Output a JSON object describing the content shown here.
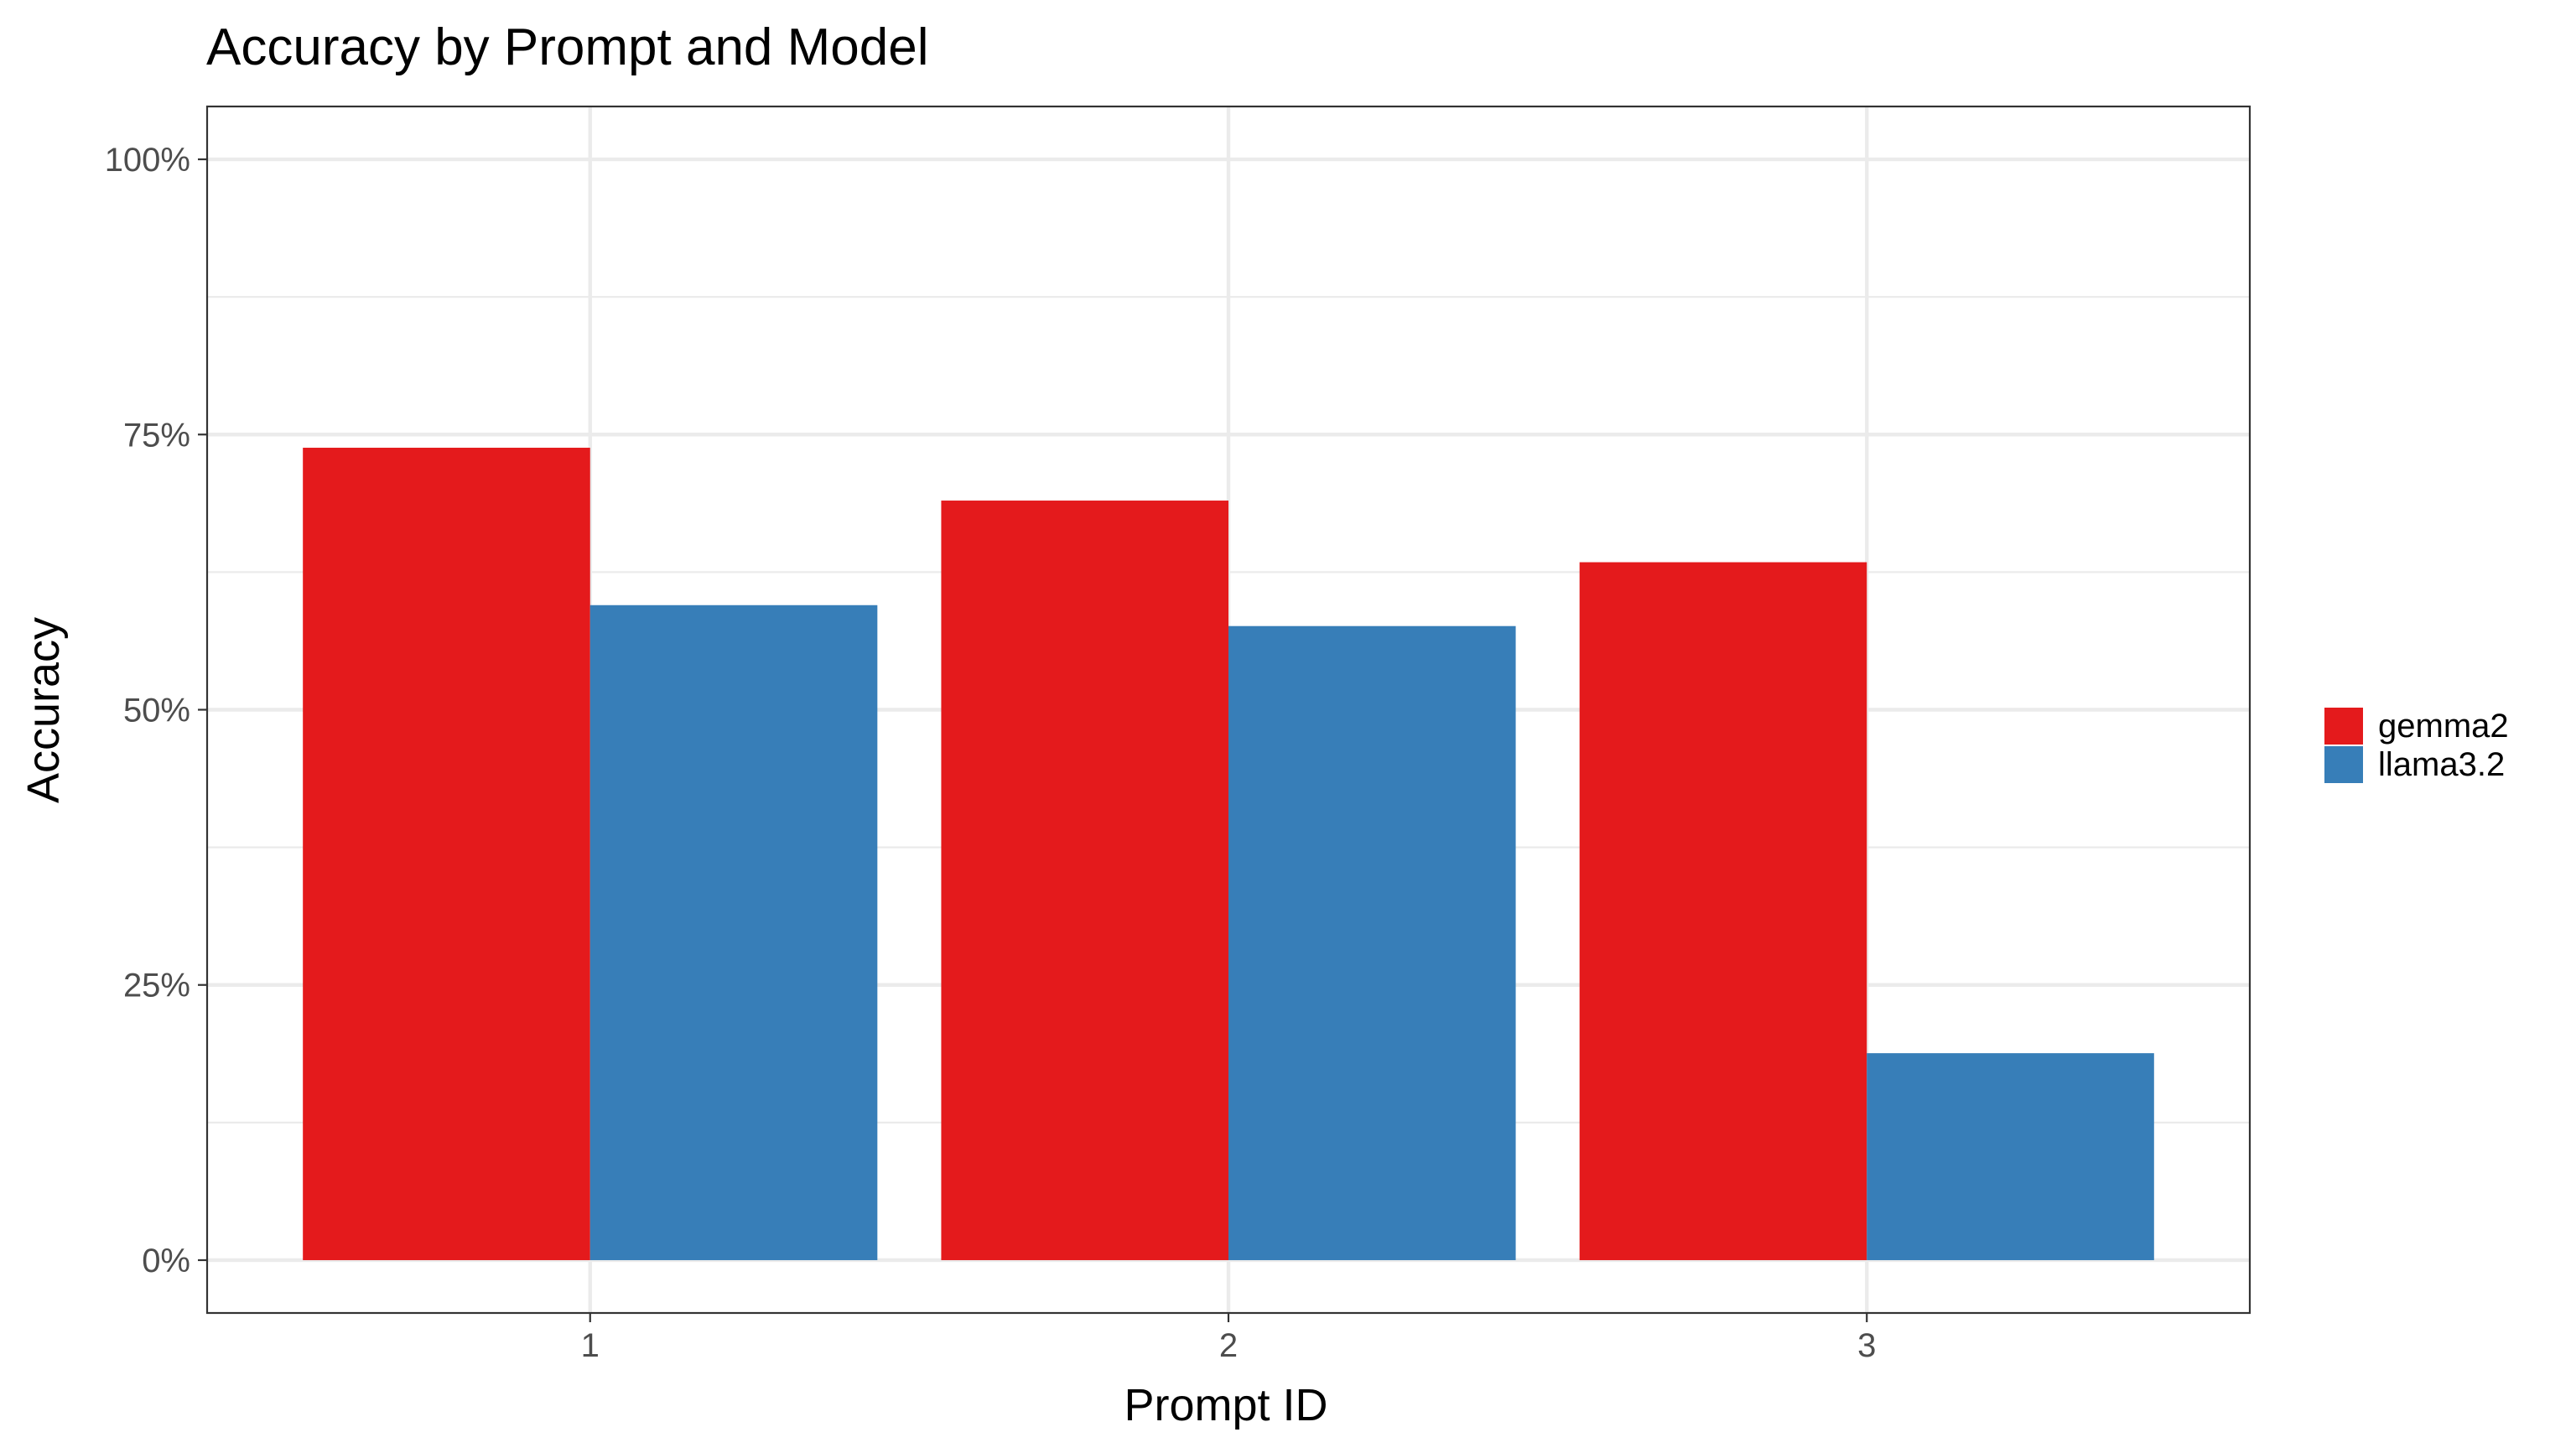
{
  "chart_data": {
    "type": "bar",
    "title": "Accuracy by Prompt and Model",
    "xlabel": "Prompt ID",
    "ylabel": "Accuracy",
    "categories": [
      "1",
      "2",
      "3"
    ],
    "series": [
      {
        "name": "gemma2",
        "color": "#E41A1C",
        "values": [
          0.738,
          0.69,
          0.634
        ]
      },
      {
        "name": "llama3.2",
        "color": "#377EB8",
        "values": [
          0.595,
          0.576,
          0.188
        ]
      }
    ],
    "ylim": [
      -0.048,
      1.048
    ],
    "yticks": [
      0,
      0.25,
      0.5,
      0.75,
      1.0
    ],
    "ytick_labels": [
      "0%",
      "25%",
      "50%",
      "75%",
      "100%"
    ],
    "grid": true,
    "legend_position": "right",
    "theme": "bw"
  }
}
